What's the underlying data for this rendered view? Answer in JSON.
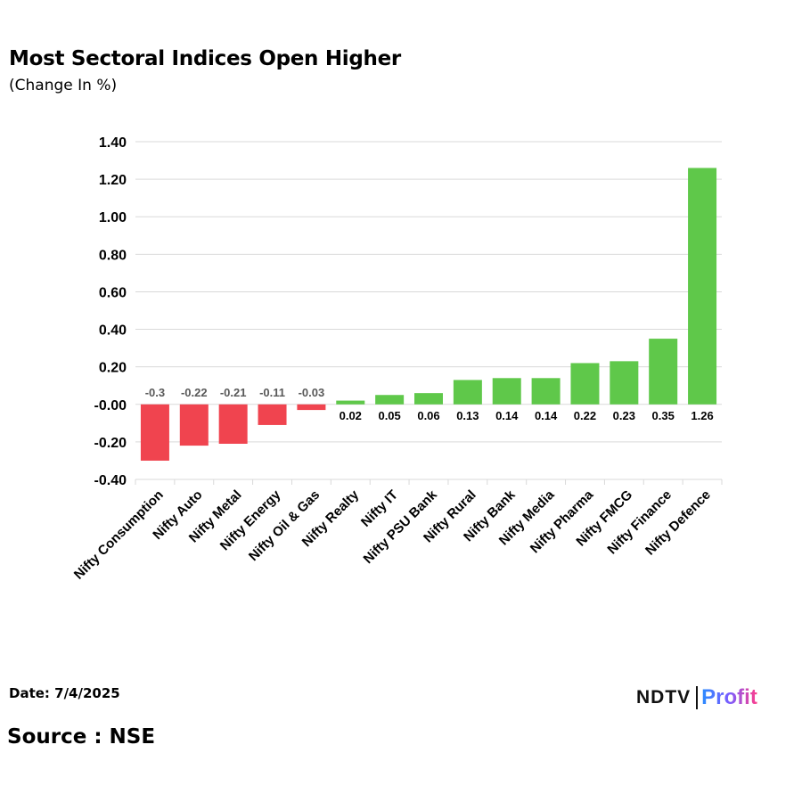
{
  "header": {
    "title": "Most Sectoral Indices Open Higher",
    "subtitle": "(Change In %)"
  },
  "footer": {
    "date": "Date: 7/4/2025",
    "source": "Source : NSE",
    "logo_ndtv": "NDTV",
    "logo_profit": "Profit"
  },
  "colors": {
    "positive": "#5fc84a",
    "negative": "#f0444f",
    "grid": "#d9d9d9",
    "axis_text": "#000000",
    "negative_label": "#595959"
  },
  "chart_data": {
    "type": "bar",
    "title": "Most Sectoral Indices Open Higher",
    "subtitle": "(Change In %)",
    "categories": [
      "Nifty Consumption",
      "Nifty Auto",
      "Nifty Metal",
      "Nifty Energy",
      "Nifty Oil & Gas",
      "Nifty Realty",
      "Nifty IT",
      "Nifty PSU Bank",
      "Nifty Rural",
      "Nifty Bank",
      "Nifty Media",
      "Nifty Pharma",
      "Nifty FMCG",
      "Nifty Finance",
      "Nifty Defence"
    ],
    "values": [
      -0.3,
      -0.22,
      -0.21,
      -0.11,
      -0.03,
      0.02,
      0.05,
      0.06,
      0.13,
      0.14,
      0.14,
      0.22,
      0.23,
      0.35,
      1.26
    ],
    "data_labels": [
      "-0.3",
      "-0.22",
      "-0.21",
      "-0.11",
      "-0.03",
      "0.02",
      "0.05",
      "0.06",
      "0.13",
      "0.14",
      "0.14",
      "0.22",
      "0.23",
      "0.35",
      "1.26"
    ],
    "yticks": [
      1.4,
      1.2,
      1.0,
      0.8,
      0.6,
      0.4,
      0.2,
      0.0,
      -0.2,
      -0.4
    ],
    "ytick_labels": [
      "1.40",
      "1.20",
      "1.00",
      "0.80",
      "0.60",
      "0.40",
      "0.20",
      "-0.00",
      "-0.20",
      "-0.40"
    ],
    "ylim": [
      -0.4,
      1.4
    ],
    "grid": true,
    "legend": "none"
  }
}
